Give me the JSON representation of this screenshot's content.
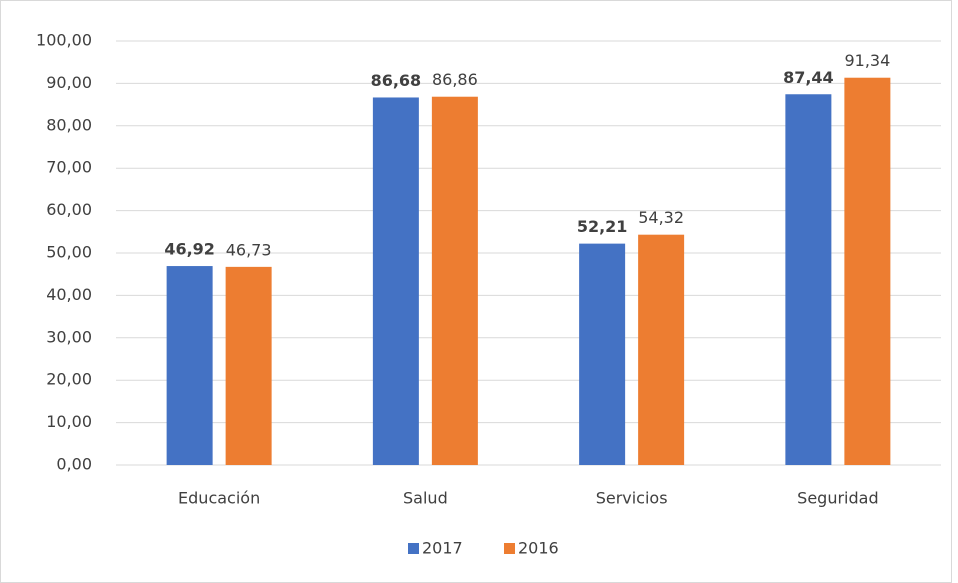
{
  "chart_data": {
    "type": "bar",
    "categories": [
      "Educación",
      "Salud",
      "Servicios",
      "Seguridad"
    ],
    "series": [
      {
        "name": "2017",
        "color": "#4472c4",
        "bold_labels": true,
        "values": [
          46.92,
          86.68,
          52.21,
          87.44
        ],
        "value_labels": [
          "46,92",
          "86,68",
          "52,21",
          "87,44"
        ]
      },
      {
        "name": "2016",
        "color": "#ed7d31",
        "bold_labels": false,
        "values": [
          46.73,
          86.86,
          54.32,
          91.34
        ],
        "value_labels": [
          "46,73",
          "86,86",
          "54,32",
          "91,34"
        ]
      }
    ],
    "ylim": [
      0,
      100
    ],
    "yticks": [
      {
        "value": 0,
        "label": "0,00"
      },
      {
        "value": 10,
        "label": "10,00"
      },
      {
        "value": 20,
        "label": "20,00"
      },
      {
        "value": 30,
        "label": "30,00"
      },
      {
        "value": 40,
        "label": "40,00"
      },
      {
        "value": 50,
        "label": "50,00"
      },
      {
        "value": 60,
        "label": "60,00"
      },
      {
        "value": 70,
        "label": "70,00"
      },
      {
        "value": 80,
        "label": "80,00"
      },
      {
        "value": 90,
        "label": "90,00"
      },
      {
        "value": 100,
        "label": "100,00"
      }
    ],
    "grid": true,
    "legend": "bottom"
  }
}
